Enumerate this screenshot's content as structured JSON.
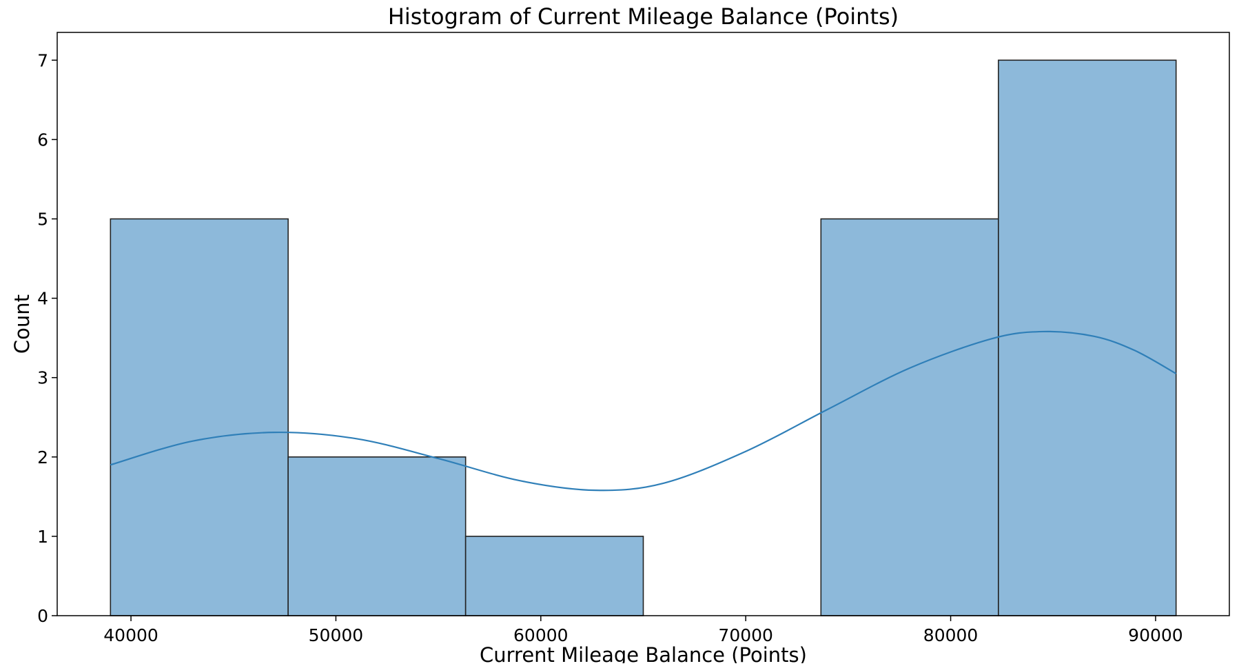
{
  "chart_data": {
    "type": "bar",
    "title": "Histogram of Current Mileage Balance (Points)",
    "xlabel": "Current Mileage Balance (Points)",
    "ylabel": "Count",
    "xlim": [
      36400,
      93600
    ],
    "ylim": [
      0,
      7.35
    ],
    "x_ticks": [
      40000,
      50000,
      60000,
      70000,
      80000,
      90000
    ],
    "y_ticks": [
      0,
      1,
      2,
      3,
      4,
      5,
      6,
      7
    ],
    "bins": [
      {
        "x0": 39000,
        "x1": 47670,
        "count": 5
      },
      {
        "x0": 47670,
        "x1": 56330,
        "count": 2
      },
      {
        "x0": 56330,
        "x1": 65000,
        "count": 1
      },
      {
        "x0": 65000,
        "x1": 73670,
        "count": 0
      },
      {
        "x0": 73670,
        "x1": 82330,
        "count": 5
      },
      {
        "x0": 82330,
        "x1": 91000,
        "count": 7
      }
    ],
    "kde": {
      "name": "KDE",
      "x": [
        39000,
        43000,
        47000,
        51000,
        55000,
        59000,
        62700,
        66000,
        70000,
        74000,
        78000,
        82000,
        84500,
        87000,
        89000,
        91000
      ],
      "y": [
        1.9,
        2.2,
        2.31,
        2.23,
        1.98,
        1.7,
        1.58,
        1.67,
        2.07,
        2.6,
        3.12,
        3.49,
        3.58,
        3.52,
        3.34,
        3.05
      ]
    },
    "grid": false,
    "colors": {
      "bar_fill": "#8db9da",
      "bar_edge": "#222222",
      "kde_line": "#2f7fb8",
      "axis": "#000000"
    }
  }
}
